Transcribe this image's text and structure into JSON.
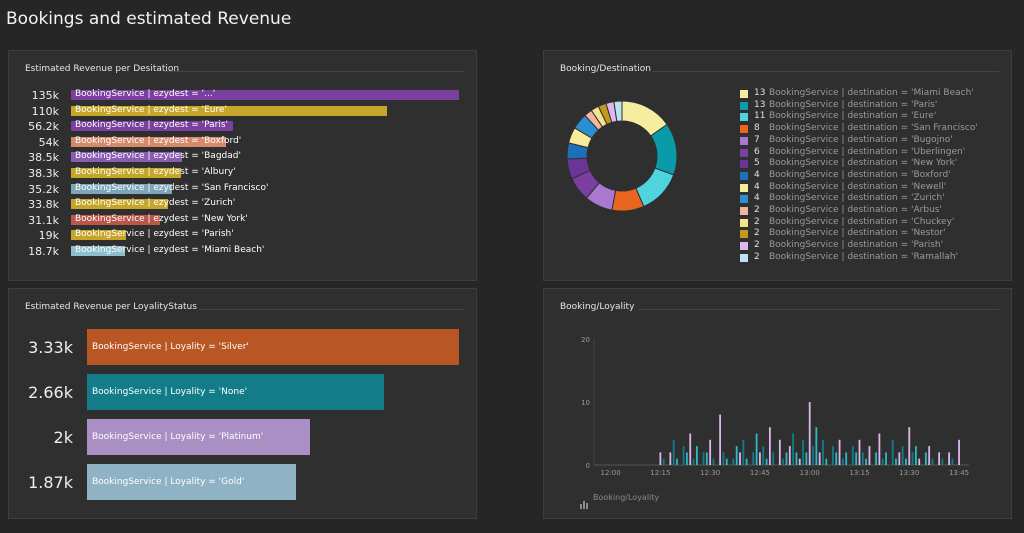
{
  "page": {
    "title": "Bookings and estimated Revenue"
  },
  "tiles": {
    "revenue_per_destination": {
      "title": "Estimated Revenue per Desitation"
    },
    "booking_destination": {
      "title": "Booking/Destination"
    },
    "revenue_per_loyalty": {
      "title": "Estimated Revenue per LoyalityStatus"
    },
    "booking_loyalty": {
      "title": "Booking/Loyality",
      "legend_label": "Booking/Loyality"
    }
  },
  "chart_data": [
    {
      "id": "revenue_per_destination",
      "type": "bar",
      "orientation": "horizontal",
      "title": "Estimated Revenue per Desitation",
      "series": [
        {
          "name": "BookingService | ezydest = '...'",
          "value": 135000,
          "display": "135k",
          "color": "#7b3fa0"
        },
        {
          "name": "BookingService | ezydest = 'Eure'",
          "value": 110000,
          "display": "110k",
          "color": "#c6a62a"
        },
        {
          "name": "BookingService | ezydest = 'Paris'",
          "value": 56200,
          "display": "56.2k",
          "color": "#7b3fa0"
        },
        {
          "name": "BookingService | ezydest = 'Boxford'",
          "value": 54000,
          "display": "54k",
          "color": "#d6896b"
        },
        {
          "name": "BookingService | ezydest = 'Bagdad'",
          "value": 38500,
          "display": "38.5k",
          "color": "#8a5cb2"
        },
        {
          "name": "BookingService | ezydest = 'Albury'",
          "value": 38300,
          "display": "38.3k",
          "color": "#c6a62a"
        },
        {
          "name": "BookingService | ezydest = 'San Francisco'",
          "value": 35200,
          "display": "35.2k",
          "color": "#7fa6b8"
        },
        {
          "name": "BookingService | ezydest = 'Zurich'",
          "value": 33800,
          "display": "33.8k",
          "color": "#c6a62a"
        },
        {
          "name": "BookingService | ezydest = 'New York'",
          "value": 31100,
          "display": "31.1k",
          "color": "#b8574a"
        },
        {
          "name": "BookingService | ezydest = 'Parish'",
          "value": 19000,
          "display": "19k",
          "color": "#c6a62a"
        },
        {
          "name": "BookingService | ezydest = 'Miami Beach'",
          "value": 18700,
          "display": "18.7k",
          "color": "#8fbecc"
        }
      ]
    },
    {
      "id": "booking_destination",
      "type": "pie",
      "donut": true,
      "title": "Booking/Destination",
      "legend_position": "right",
      "slices": [
        {
          "name": "BookingService | destination = 'Miami Beach'",
          "value": 13,
          "color": "#f7eda1"
        },
        {
          "name": "BookingService | destination = 'Paris'",
          "value": 13,
          "color": "#0b9aa8"
        },
        {
          "name": "BookingService | destination = 'Eure'",
          "value": 11,
          "color": "#4fd3dd"
        },
        {
          "name": "BookingService | destination = 'San Francisco'",
          "value": 8,
          "color": "#e8661f"
        },
        {
          "name": "BookingService | destination = 'Bugojno'",
          "value": 7,
          "color": "#a979d1"
        },
        {
          "name": "BookingService | destination = 'Uberlingen'",
          "value": 6,
          "color": "#7b3fa0"
        },
        {
          "name": "BookingService | destination = 'New York'",
          "value": 5,
          "color": "#6a3596"
        },
        {
          "name": "BookingService | destination = 'Boxford'",
          "value": 4,
          "color": "#1d6fb8"
        },
        {
          "name": "BookingService | destination = 'Newell'",
          "value": 4,
          "color": "#f5eb9a"
        },
        {
          "name": "BookingService | destination = 'Zurich'",
          "value": 4,
          "color": "#2a8fd0"
        },
        {
          "name": "BookingService | destination = 'Arbus'",
          "value": 2,
          "color": "#f2b6a0"
        },
        {
          "name": "BookingService | destination = 'Chuckey'",
          "value": 2,
          "color": "#f3e38c"
        },
        {
          "name": "BookingService | destination = 'Nestor'",
          "value": 2,
          "color": "#c39a1e"
        },
        {
          "name": "BookingService | destination = 'Parish'",
          "value": 2,
          "color": "#dcb8ee"
        },
        {
          "name": "BookingService | destination = 'Ramallah'",
          "value": 2,
          "color": "#b9e3f2"
        }
      ]
    },
    {
      "id": "revenue_per_loyalty",
      "type": "bar",
      "orientation": "horizontal",
      "title": "Estimated Revenue per LoyalityStatus",
      "series": [
        {
          "name": "BookingService | Loyality = 'Silver'",
          "value": 3330,
          "display": "3.33k",
          "color": "#b85624"
        },
        {
          "name": "BookingService | Loyality = 'None'",
          "value": 2660,
          "display": "2.66k",
          "color": "#127d88"
        },
        {
          "name": "BookingService | Loyality = 'Platinum'",
          "value": 2000,
          "display": "2k",
          "color": "#a98fc4"
        },
        {
          "name": "BookingService | Loyality = 'Gold'",
          "value": 1870,
          "display": "1.87k",
          "color": "#8fb2c4"
        }
      ]
    },
    {
      "id": "booking_loyalty",
      "type": "bar",
      "title": "Booking/Loyality",
      "x_ticks": [
        "12:00",
        "12:15",
        "12:30",
        "12:45",
        "13:00",
        "13:15",
        "13:30",
        "13:45"
      ],
      "y_ticks": [
        0,
        10,
        20
      ],
      "ylim": [
        0,
        20
      ],
      "series_colors": [
        "#dcb8ee",
        "#127d88",
        "#2fb8c4"
      ],
      "x": [
        "12:15",
        "12:16",
        "12:17",
        "12:18",
        "12:19",
        "12:20",
        "12:21",
        "12:22",
        "12:23",
        "12:24",
        "12:25",
        "12:26",
        "12:27",
        "12:28",
        "12:29",
        "12:30",
        "12:31",
        "12:32",
        "12:33",
        "12:34",
        "12:35",
        "12:36",
        "12:37",
        "12:38",
        "12:39",
        "12:40",
        "12:41",
        "12:42",
        "12:43",
        "12:44",
        "12:45",
        "12:46",
        "12:47",
        "12:48",
        "12:49",
        "12:50",
        "12:51",
        "12:52",
        "12:53",
        "12:54",
        "12:55",
        "12:56",
        "12:57",
        "12:58",
        "12:59",
        "13:00",
        "13:01",
        "13:02",
        "13:03",
        "13:04",
        "13:05",
        "13:06",
        "13:07",
        "13:08",
        "13:09",
        "13:10",
        "13:11",
        "13:12",
        "13:13",
        "13:14",
        "13:15",
        "13:16",
        "13:17",
        "13:18",
        "13:19",
        "13:20",
        "13:21",
        "13:22",
        "13:23",
        "13:24",
        "13:25",
        "13:26",
        "13:27",
        "13:28",
        "13:29",
        "13:30",
        "13:31",
        "13:32",
        "13:33",
        "13:34",
        "13:35",
        "13:36",
        "13:37",
        "13:38",
        "13:39",
        "13:40",
        "13:41",
        "13:42",
        "13:43",
        "13:44",
        "13:45"
      ],
      "values": [
        2,
        1,
        0,
        2,
        4,
        1,
        0,
        3,
        2,
        5,
        1,
        3,
        0,
        2,
        2,
        4,
        1,
        0,
        8,
        2,
        1,
        0,
        1,
        3,
        2,
        4,
        1,
        0,
        2,
        5,
        2,
        3,
        1,
        6,
        2,
        0,
        4,
        1,
        2,
        3,
        5,
        2,
        1,
        4,
        2,
        10,
        3,
        6,
        2,
        4,
        1,
        0,
        3,
        2,
        4,
        1,
        2,
        0,
        3,
        2,
        4,
        2,
        1,
        3,
        0,
        2,
        5,
        1,
        2,
        0,
        4,
        1,
        2,
        3,
        1,
        6,
        2,
        3,
        1,
        0,
        2,
        3,
        1,
        0,
        2,
        1,
        0,
        2,
        1,
        0,
        4
      ]
    }
  ]
}
